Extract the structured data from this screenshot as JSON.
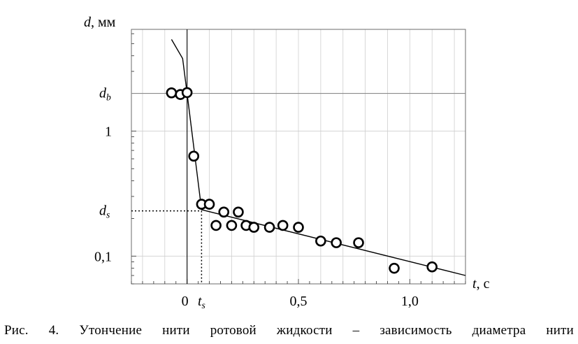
{
  "chart_data": {
    "type": "scatter",
    "y_scale": "log",
    "x_axis": {
      "label_var": "t",
      "label_unit": ", с",
      "range": [
        -0.25,
        1.25
      ],
      "ticks": [
        {
          "value": 0,
          "label": "0"
        },
        {
          "value": 0.5,
          "label": "0,5"
        },
        {
          "value": 1.0,
          "label": "1,0"
        }
      ],
      "special_tick": {
        "value": 0.065,
        "var": "t",
        "sub": "s"
      }
    },
    "y_axis": {
      "label_var": "d",
      "label_unit": ", мм",
      "range": [
        0.06,
        6.5
      ],
      "ticks": [
        {
          "value": 1,
          "label": "1"
        },
        {
          "value": 0.1,
          "label": "0,1"
        }
      ],
      "special_ticks": [
        {
          "key": "db",
          "value": 2.0,
          "var": "d",
          "sub": "b"
        },
        {
          "key": "ds",
          "value": 0.23,
          "var": "d",
          "sub": "s"
        }
      ]
    },
    "grid": true,
    "points": [
      {
        "t": -0.07,
        "d": 2.02
      },
      {
        "t": -0.03,
        "d": 1.96
      },
      {
        "t": 0.0,
        "d": 2.03
      },
      {
        "t": 0.03,
        "d": 0.63
      },
      {
        "t": 0.065,
        "d": 0.26
      },
      {
        "t": 0.1,
        "d": 0.26
      },
      {
        "t": 0.13,
        "d": 0.176
      },
      {
        "t": 0.165,
        "d": 0.225
      },
      {
        "t": 0.2,
        "d": 0.176
      },
      {
        "t": 0.23,
        "d": 0.225
      },
      {
        "t": 0.265,
        "d": 0.176
      },
      {
        "t": 0.3,
        "d": 0.17
      },
      {
        "t": 0.37,
        "d": 0.17
      },
      {
        "t": 0.43,
        "d": 0.176
      },
      {
        "t": 0.5,
        "d": 0.17
      },
      {
        "t": 0.6,
        "d": 0.132
      },
      {
        "t": 0.67,
        "d": 0.128
      },
      {
        "t": 0.77,
        "d": 0.128
      },
      {
        "t": 0.93,
        "d": 0.08
      },
      {
        "t": 1.1,
        "d": 0.082
      }
    ],
    "fit_line": [
      {
        "t": -0.07,
        "d": 5.4
      },
      {
        "t": -0.02,
        "d": 3.8
      },
      {
        "t": 0.0,
        "d": 2.0
      },
      {
        "t": 0.065,
        "d": 0.235
      },
      {
        "t": 1.25,
        "d": 0.07
      }
    ]
  },
  "caption": "Рис.  4.  Утончение  нити  ротовой  жидкости  –  зависимость  диаметра  нити"
}
